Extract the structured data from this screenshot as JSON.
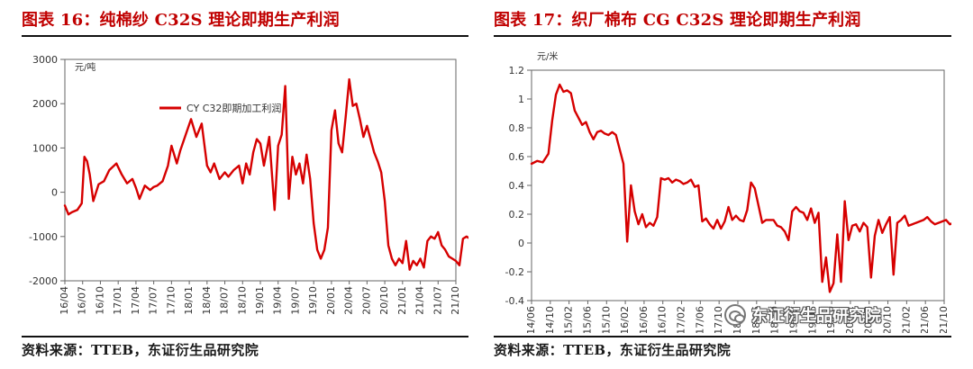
{
  "left_panel": {
    "title": "图表 16：纯棉纱 C32S 理论即期生产利润",
    "source": "资料来源：TTEB，东证衍生品研究院"
  },
  "right_panel": {
    "title": "图表 17：织厂棉布 CG C32S 理论即期生产利润",
    "source": "资料来源：TTEB，东证衍生品研究院"
  },
  "watermark": {
    "text": "东证衍生品研究院",
    "icon": "wechat-icon"
  },
  "colors": {
    "title": "#c00000",
    "series": "#d60000",
    "axis": "#666666",
    "text": "#1a1a1a"
  },
  "chart_data": [
    {
      "type": "line",
      "title": "",
      "xlabel": "",
      "ylabel": "元/吨",
      "legend": [
        "CY C32即期加工利润"
      ],
      "legend_position": "top-center",
      "grid": false,
      "ylim": [
        -2000,
        3000
      ],
      "yticks": [
        "3000",
        "2000",
        "1000",
        "0",
        "-1000",
        "-2000"
      ],
      "x_tick_labels": [
        "16/04",
        "16/07",
        "16/10",
        "17/01",
        "17/04",
        "17/07",
        "17/10",
        "18/01",
        "18/04",
        "18/07",
        "18/10",
        "19/01",
        "19/04",
        "19/07",
        "19/10",
        "20/01",
        "20/04",
        "20/07",
        "20/10",
        "21/01",
        "21/04",
        "21/07",
        "21/10"
      ],
      "series": [
        {
          "name": "CY C32即期加工利润",
          "x": [
            0,
            0.2,
            0.4,
            0.7,
            0.95,
            1.1,
            1.25,
            1.4,
            1.6,
            1.9,
            2.2,
            2.5,
            2.9,
            3.2,
            3.5,
            3.8,
            4.0,
            4.2,
            4.5,
            4.8,
            5.0,
            5.2,
            5.5,
            5.8,
            6.0,
            6.3,
            6.5,
            6.8,
            7.1,
            7.4,
            7.7,
            8.0,
            8.2,
            8.4,
            8.7,
            9.0,
            9.2,
            9.5,
            9.8,
            10.0,
            10.2,
            10.4,
            10.6,
            10.8,
            11.0,
            11.2,
            11.5,
            11.8,
            12.0,
            12.2,
            12.4,
            12.6,
            12.8,
            13.0,
            13.2,
            13.4,
            13.6,
            13.8,
            14.0,
            14.2,
            14.4,
            14.6,
            14.8,
            15.0,
            15.2,
            15.4,
            15.6,
            15.8,
            16.0,
            16.2,
            16.4,
            16.6,
            16.8,
            17.0,
            17.2,
            17.4,
            17.6,
            17.8,
            18.0,
            18.2,
            18.4,
            18.6,
            18.8,
            19.0,
            19.2,
            19.4,
            19.6,
            19.8,
            20.0,
            20.2,
            20.4,
            20.6,
            20.8,
            21.0,
            21.2,
            21.4,
            21.6,
            21.8,
            22.0,
            22.2,
            22.4,
            22.6,
            22.8
          ],
          "values": [
            -300,
            -500,
            -450,
            -400,
            -250,
            800,
            700,
            400,
            -200,
            180,
            250,
            500,
            650,
            400,
            200,
            300,
            100,
            -150,
            150,
            50,
            120,
            150,
            250,
            600,
            1050,
            650,
            950,
            1300,
            1650,
            1250,
            1550,
            600,
            450,
            650,
            300,
            450,
            350,
            500,
            600,
            200,
            650,
            400,
            900,
            1200,
            1100,
            600,
            1250,
            -400,
            1050,
            1300,
            2400,
            -150,
            800,
            400,
            650,
            200,
            850,
            300,
            -700,
            -1300,
            -1500,
            -1300,
            -800,
            1400,
            1850,
            1100,
            900,
            1700,
            2550,
            1950,
            2000,
            1650,
            1250,
            1500,
            1200,
            900,
            700,
            450,
            -200,
            -1200,
            -1500,
            -1650,
            -1500,
            -1600,
            -1100,
            -1750,
            -1550,
            -1650,
            -1500,
            -1700,
            -1100,
            -1000,
            -1050,
            -900,
            -1200,
            -1300,
            -1450,
            -1500,
            -1550,
            -1650,
            -1050,
            -1000,
            -1050
          ]
        }
      ]
    },
    {
      "type": "line",
      "title": "",
      "xlabel": "",
      "ylabel": "元/米",
      "legend": [],
      "grid": false,
      "ylim": [
        -0.4,
        1.2
      ],
      "yticks": [
        "1.2",
        "1",
        "0.8",
        "0.6",
        "0.4",
        "0.2",
        "0",
        "-0.2",
        "-0.4"
      ],
      "x_tick_labels": [
        "14/06",
        "14/10",
        "15/02",
        "15/06",
        "15/10",
        "16/02",
        "16/06",
        "16/10",
        "17/02",
        "17/06",
        "17/10",
        "18/02",
        "18/06",
        "18/10",
        "19/02",
        "19/06",
        "19/10",
        "20/02",
        "20/06",
        "20/10",
        "21/02",
        "21/06",
        "21/10"
      ],
      "series": [
        {
          "name": "",
          "x": [
            0,
            0.3,
            0.6,
            0.9,
            1.1,
            1.3,
            1.5,
            1.7,
            1.9,
            2.1,
            2.3,
            2.5,
            2.7,
            2.9,
            3.1,
            3.3,
            3.5,
            3.7,
            3.9,
            4.1,
            4.3,
            4.5,
            4.7,
            4.9,
            5.1,
            5.3,
            5.5,
            5.7,
            5.9,
            6.1,
            6.3,
            6.5,
            6.7,
            6.9,
            7.1,
            7.3,
            7.5,
            7.7,
            7.9,
            8.1,
            8.3,
            8.5,
            8.7,
            8.9,
            9.1,
            9.3,
            9.5,
            9.7,
            9.9,
            10.1,
            10.3,
            10.5,
            10.7,
            10.9,
            11.1,
            11.3,
            11.5,
            11.7,
            11.9,
            12.1,
            12.3,
            12.5,
            12.7,
            12.9,
            13.1,
            13.3,
            13.5,
            13.7,
            13.9,
            14.1,
            14.3,
            14.5,
            14.7,
            14.9,
            15.1,
            15.3,
            15.5,
            15.7,
            15.9,
            16.1,
            16.3,
            16.5,
            16.7,
            16.9,
            17.1,
            17.3,
            17.5,
            17.7,
            17.9,
            18.1,
            18.3,
            18.5,
            18.7,
            18.9,
            19.1,
            19.3,
            19.5,
            19.7,
            19.9,
            20.1,
            20.3,
            20.5,
            20.7,
            20.9,
            21.1,
            21.3,
            21.5,
            21.7,
            21.9,
            22.1,
            22.3,
            22.5,
            22.7,
            22.9
          ],
          "values": [
            0.55,
            0.57,
            0.56,
            0.62,
            0.85,
            1.03,
            1.1,
            1.05,
            1.06,
            1.04,
            0.92,
            0.87,
            0.82,
            0.84,
            0.77,
            0.72,
            0.77,
            0.78,
            0.76,
            0.75,
            0.77,
            0.75,
            0.65,
            0.55,
            0.01,
            0.4,
            0.22,
            0.13,
            0.2,
            0.11,
            0.14,
            0.12,
            0.18,
            0.45,
            0.44,
            0.45,
            0.42,
            0.44,
            0.43,
            0.41,
            0.42,
            0.44,
            0.39,
            0.4,
            0.15,
            0.17,
            0.13,
            0.1,
            0.16,
            0.1,
            0.15,
            0.25,
            0.16,
            0.19,
            0.16,
            0.15,
            0.23,
            0.42,
            0.38,
            0.26,
            0.14,
            0.16,
            0.16,
            0.16,
            0.12,
            0.11,
            0.08,
            0.02,
            0.22,
            0.25,
            0.22,
            0.21,
            0.16,
            0.24,
            0.14,
            0.21,
            -0.27,
            -0.1,
            -0.34,
            -0.28,
            0.06,
            -0.27,
            0.29,
            0.02,
            0.12,
            0.13,
            0.08,
            0.14,
            0.11,
            -0.24,
            0.05,
            0.16,
            0.07,
            0.13,
            0.18,
            -0.22,
            0.14,
            0.16,
            0.19,
            0.12,
            0.13,
            0.14,
            0.15,
            0.16,
            0.18,
            0.15,
            0.13,
            0.14,
            0.15,
            0.16,
            0.13,
            0.14,
            0.12,
            0.13
          ]
        }
      ]
    }
  ]
}
